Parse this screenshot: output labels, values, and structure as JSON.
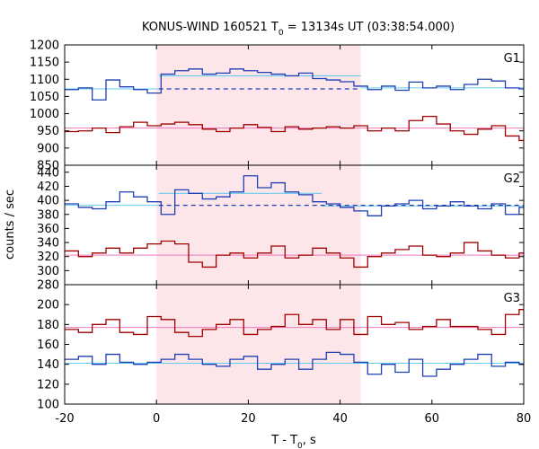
{
  "chart_data": {
    "type": "line",
    "title": "KONUS-WIND 160521 T",
    "title_sub": "0",
    "title_rest": " = 13134s UT (03:38:54.000)",
    "xlabel": "T - T",
    "xlabel_sub": "0",
    "xlabel_rest": ", s",
    "ylabel": "counts / sec",
    "xlim": [
      -20,
      80
    ],
    "x_ticks": [
      -20,
      0,
      20,
      40,
      60,
      80
    ],
    "shaded_interval": [
      0,
      44.5
    ],
    "colors": {
      "blue": "#1f3fb4",
      "red": "#a00000",
      "cyan": "#66ccee",
      "pink": "#ee77bb",
      "shade": "#fde6ea"
    },
    "bin_edges": [
      -20,
      -17,
      -14,
      -11,
      -8,
      -5,
      -2,
      1,
      4,
      7,
      10,
      13,
      16,
      19,
      22,
      25,
      28,
      31,
      34,
      37,
      40,
      43,
      46,
      49,
      52,
      55,
      58,
      61,
      64,
      67,
      70,
      73,
      76,
      79,
      80
    ],
    "panels": [
      {
        "name": "G1",
        "ylim": [
          850,
          1200
        ],
        "y_ticks": [
          850,
          900,
          950,
          1000,
          1050,
          1100,
          1150,
          1200
        ],
        "series": [
          {
            "color": "blue",
            "values": [
              1070,
              1075,
              1040,
              1098,
              1078,
              1070,
              1060,
              1115,
              1125,
              1130,
              1115,
              1118,
              1130,
              1125,
              1120,
              1115,
              1110,
              1118,
              1102,
              1098,
              1093,
              1080,
              1070,
              1080,
              1068,
              1092,
              1075,
              1080,
              1070,
              1085,
              1100,
              1095,
              1075,
              1072
            ]
          },
          {
            "color": "red",
            "values": [
              948,
              950,
              958,
              945,
              962,
              975,
              965,
              970,
              975,
              968,
              955,
              948,
              958,
              968,
              960,
              948,
              962,
              955,
              958,
              962,
              958,
              965,
              950,
              958,
              950,
              980,
              992,
              970,
              950,
              940,
              955,
              965,
              935,
              922
            ]
          }
        ],
        "background_lines": [
          {
            "color": "cyan",
            "segments": [
              [
                -20,
                1072,
                0.5,
                1072
              ],
              [
                44.5,
                1075,
                80,
                1075
              ]
            ]
          },
          {
            "color": "pink",
            "segments": [
              [
                -20,
                958,
                80,
                958
              ]
            ]
          }
        ],
        "fit_lines": [
          {
            "color": "cyan",
            "x": [
              0.5,
              44.5
            ],
            "y": [
              1110,
              1110
            ]
          }
        ],
        "dashed_lines": [
          {
            "color": "blue",
            "x": [
              0.5,
              44.5
            ],
            "y": [
              1072,
              1072
            ]
          }
        ]
      },
      {
        "name": "G2",
        "ylim": [
          280,
          450
        ],
        "y_ticks": [
          280,
          300,
          320,
          340,
          360,
          380,
          400,
          420,
          440
        ],
        "series": [
          {
            "color": "blue",
            "values": [
              395,
              390,
              388,
              398,
              412,
              405,
              398,
              380,
              415,
              410,
              402,
              405,
              412,
              435,
              418,
              425,
              412,
              408,
              398,
              395,
              390,
              385,
              378,
              392,
              395,
              400,
              388,
              392,
              398,
              392,
              388,
              395,
              380,
              390
            ]
          },
          {
            "color": "red",
            "values": [
              328,
              320,
              325,
              332,
              325,
              332,
              338,
              342,
              338,
              312,
              305,
              322,
              325,
              318,
              325,
              335,
              318,
              322,
              332,
              325,
              318,
              305,
              320,
              325,
              330,
              335,
              322,
              320,
              325,
              340,
              328,
              322,
              318,
              325
            ]
          }
        ],
        "background_lines": [
          {
            "color": "cyan",
            "segments": [
              [
                -20,
                393,
                0.5,
                393
              ],
              [
                36,
                392,
                80,
                392
              ]
            ]
          },
          {
            "color": "pink",
            "segments": [
              [
                -20,
                322,
                80,
                322
              ]
            ]
          }
        ],
        "fit_lines": [
          {
            "color": "cyan",
            "x": [
              0.5,
              36
            ],
            "y": [
              410,
              410
            ]
          }
        ],
        "dashed_lines": [
          {
            "color": "blue",
            "x": [
              0.5,
              80
            ],
            "y": [
              393,
              393
            ]
          }
        ]
      },
      {
        "name": "G3",
        "ylim": [
          100,
          220
        ],
        "y_ticks": [
          100,
          120,
          140,
          160,
          180,
          200
        ],
        "series": [
          {
            "color": "blue",
            "values": [
              145,
              148,
              140,
              150,
              142,
              140,
              142,
              145,
              150,
              145,
              140,
              138,
              145,
              148,
              135,
              140,
              145,
              135,
              145,
              152,
              150,
              142,
              130,
              140,
              132,
              145,
              128,
              135,
              140,
              145,
              150,
              138,
              142,
              140
            ]
          },
          {
            "color": "red",
            "values": [
              175,
              172,
              180,
              185,
              172,
              170,
              188,
              185,
              172,
              168,
              175,
              180,
              185,
              170,
              175,
              178,
              190,
              180,
              185,
              175,
              185,
              170,
              188,
              180,
              182,
              175,
              178,
              185,
              178,
              178,
              175,
              170,
              190,
              195
            ]
          }
        ],
        "background_lines": [
          {
            "color": "cyan",
            "segments": [
              [
                -20,
                141,
                80,
                141
              ]
            ]
          },
          {
            "color": "pink",
            "segments": [
              [
                -20,
                177,
                80,
                177
              ]
            ]
          }
        ],
        "fit_lines": [],
        "dashed_lines": []
      }
    ]
  }
}
